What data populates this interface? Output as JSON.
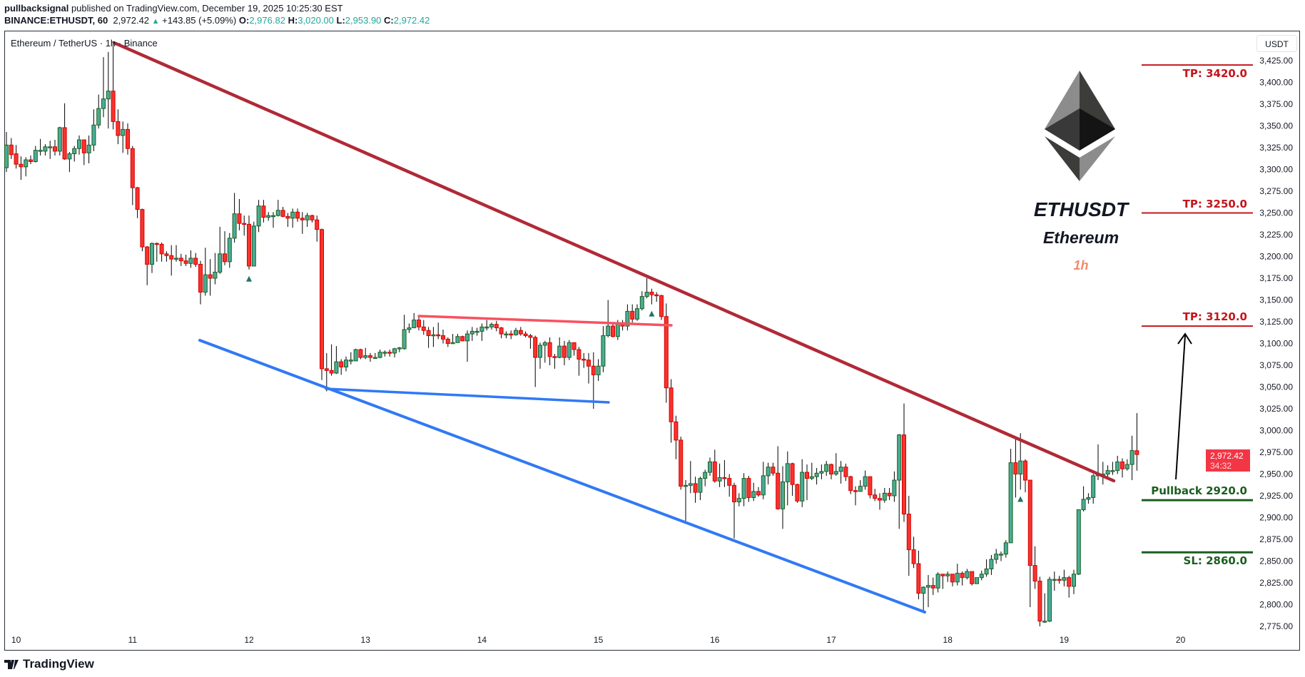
{
  "header": {
    "author": "pullbacksignal",
    "published_text": "published on TradingView.com, December 19, 2025 10:25:30 EST",
    "symbol": "BINANCE:ETHUSDT, 60",
    "last": "2,972.42",
    "change": "+143.85 (+5.09%)",
    "open_label": "O:",
    "open": "2,976.82",
    "high_label": "H:",
    "high": "3,020.00",
    "low_label": "L:",
    "low": "2,953.90",
    "close_label": "C:",
    "close": "2,972.42"
  },
  "legend": {
    "title": "Ethereum / TetherUS · 1h · Binance"
  },
  "price_axis": {
    "currency_button": "USDT",
    "last_price": "2,972.42",
    "countdown": "34:32",
    "last_price_color": "#f23645"
  },
  "overlay": {
    "ticker": "ETHUSDT",
    "name": "Ethereum",
    "timeframe": "1h",
    "logo": "ethereum-diamond-logo"
  },
  "levels": [
    {
      "label": "TP: 3420.0",
      "price": 3420,
      "color": "#c4161c",
      "label_pos": "below"
    },
    {
      "label": "TP: 3250.0",
      "price": 3250,
      "color": "#c4161c",
      "label_pos": "above"
    },
    {
      "label": "TP: 3120.0",
      "price": 3120,
      "color": "#c4161c",
      "label_pos": "above"
    },
    {
      "label": "Pullback 2920.0",
      "price": 2920,
      "color": "#1b5e20",
      "label_pos": "above"
    },
    {
      "label": "SL: 2860.0",
      "price": 2860,
      "color": "#1b5e20",
      "label_pos": "below"
    }
  ],
  "footer": {
    "brand": "TradingView"
  },
  "chart_data": {
    "type": "candlestick",
    "interval": "1h",
    "colors": {
      "up": "#4bac97",
      "up_border": "#1b5e20",
      "down": "#f7332e",
      "down_border": "#d50000",
      "resistance_trendline": "#b02a37",
      "flag_top": "#f7525f",
      "support_lines": "#3179f5"
    },
    "y_ticks": [
      "3,425.00",
      "3,400.00",
      "3,375.00",
      "3,350.00",
      "3,325.00",
      "3,300.00",
      "3,275.00",
      "3,250.00",
      "3,225.00",
      "3,200.00",
      "3,175.00",
      "3,150.00",
      "3,125.00",
      "3,100.00",
      "3,075.00",
      "3,050.00",
      "3,025.00",
      "3,000.00",
      "2,975.00",
      "2,950.00",
      "2,925.00",
      "2,900.00",
      "2,875.00",
      "2,850.00",
      "2,825.00",
      "2,800.00",
      "2,775.00"
    ],
    "ylim": [
      2760,
      3440
    ],
    "x_ticks": [
      "10",
      "11",
      "12",
      "13",
      "14",
      "15",
      "16",
      "17",
      "18",
      "19",
      "20"
    ],
    "buy_signal_markers_at_candle": [
      50,
      133,
      209
    ],
    "ohlc": [
      [
        3302,
        3343,
        3297,
        3328
      ],
      [
        3328,
        3336,
        3312,
        3317
      ],
      [
        3318,
        3328,
        3301,
        3306
      ],
      [
        3306,
        3315,
        3288,
        3303
      ],
      [
        3303,
        3314,
        3292,
        3311
      ],
      [
        3311,
        3316,
        3306,
        3309
      ],
      [
        3309,
        3327,
        3308,
        3322
      ],
      [
        3322,
        3335,
        3316,
        3322
      ],
      [
        3321,
        3329,
        3316,
        3326
      ],
      [
        3326,
        3333,
        3312,
        3326
      ],
      [
        3326,
        3334,
        3316,
        3321
      ],
      [
        3321,
        3349,
        3316,
        3348
      ],
      [
        3348,
        3376,
        3311,
        3312
      ],
      [
        3312,
        3320,
        3297,
        3318
      ],
      [
        3318,
        3327,
        3309,
        3324
      ],
      [
        3324,
        3339,
        3317,
        3334
      ],
      [
        3334,
        3334,
        3305,
        3319
      ],
      [
        3319,
        3339,
        3307,
        3328
      ],
      [
        3328,
        3369,
        3321,
        3351
      ],
      [
        3351,
        3386,
        3347,
        3370
      ],
      [
        3370,
        3429,
        3360,
        3381
      ],
      [
        3381,
        3435,
        3347,
        3390
      ],
      [
        3390,
        3446,
        3346,
        3355
      ],
      [
        3355,
        3369,
        3329,
        3339
      ],
      [
        3339,
        3355,
        3319,
        3346
      ],
      [
        3346,
        3353,
        3317,
        3324
      ],
      [
        3324,
        3327,
        3259,
        3279
      ],
      [
        3279,
        3280,
        3244,
        3254
      ],
      [
        3254,
        3255,
        3206,
        3211
      ],
      [
        3211,
        3212,
        3167,
        3191
      ],
      [
        3191,
        3216,
        3181,
        3215
      ],
      [
        3215,
        3216,
        3194,
        3214
      ],
      [
        3214,
        3216,
        3194,
        3203
      ],
      [
        3203,
        3206,
        3194,
        3201
      ],
      [
        3201,
        3213,
        3178,
        3197
      ],
      [
        3197,
        3213,
        3194,
        3198
      ],
      [
        3198,
        3203,
        3189,
        3195
      ],
      [
        3195,
        3202,
        3189,
        3192
      ],
      [
        3192,
        3207,
        3187,
        3198
      ],
      [
        3198,
        3204,
        3188,
        3191
      ],
      [
        3191,
        3195,
        3145,
        3159
      ],
      [
        3159,
        3210,
        3155,
        3179
      ],
      [
        3179,
        3197,
        3155,
        3175
      ],
      [
        3175,
        3204,
        3168,
        3182
      ],
      [
        3182,
        3234,
        3180,
        3203
      ],
      [
        3203,
        3229,
        3190,
        3194
      ],
      [
        3194,
        3227,
        3187,
        3221
      ],
      [
        3221,
        3273,
        3216,
        3249
      ],
      [
        3249,
        3266,
        3230,
        3238
      ],
      [
        3238,
        3247,
        3224,
        3237
      ],
      [
        3237,
        3247,
        3185,
        3189
      ],
      [
        3189,
        3240,
        3189,
        3235
      ],
      [
        3235,
        3265,
        3228,
        3258
      ],
      [
        3258,
        3265,
        3239,
        3245
      ],
      [
        3245,
        3251,
        3241,
        3247
      ],
      [
        3247,
        3251,
        3233,
        3247
      ],
      [
        3247,
        3265,
        3246,
        3253
      ],
      [
        3253,
        3257,
        3245,
        3246
      ],
      [
        3246,
        3250,
        3234,
        3244
      ],
      [
        3244,
        3255,
        3233,
        3251
      ],
      [
        3251,
        3255,
        3240,
        3244
      ],
      [
        3244,
        3251,
        3226,
        3242
      ],
      [
        3242,
        3250,
        3234,
        3247
      ],
      [
        3247,
        3248,
        3239,
        3242
      ],
      [
        3242,
        3247,
        3217,
        3231
      ],
      [
        3231,
        3232,
        3058,
        3071
      ],
      [
        3071,
        3089,
        3045,
        3069
      ],
      [
        3069,
        3099,
        3063,
        3066
      ],
      [
        3066,
        3097,
        3065,
        3079
      ],
      [
        3079,
        3082,
        3064,
        3073
      ],
      [
        3073,
        3085,
        3068,
        3081
      ],
      [
        3081,
        3090,
        3076,
        3081
      ],
      [
        3080,
        3094,
        3080,
        3093
      ],
      [
        3093,
        3094,
        3082,
        3084
      ],
      [
        3084,
        3095,
        3082,
        3086
      ],
      [
        3086,
        3089,
        3079,
        3084
      ],
      [
        3084,
        3089,
        3083,
        3084
      ],
      [
        3084,
        3093,
        3083,
        3090
      ],
      [
        3090,
        3092,
        3085,
        3090
      ],
      [
        3090,
        3093,
        3085,
        3089
      ],
      [
        3089,
        3095,
        3084,
        3094
      ],
      [
        3094,
        3096,
        3090,
        3095
      ],
      [
        3094,
        3133,
        3093,
        3116
      ],
      [
        3116,
        3123,
        3112,
        3118
      ],
      [
        3118,
        3135,
        3118,
        3127
      ],
      [
        3127,
        3132,
        3115,
        3119
      ],
      [
        3119,
        3127,
        3110,
        3115
      ],
      [
        3115,
        3119,
        3095,
        3109
      ],
      [
        3109,
        3119,
        3096,
        3110
      ],
      [
        3110,
        3124,
        3105,
        3109
      ],
      [
        3109,
        3116,
        3100,
        3105
      ],
      [
        3105,
        3107,
        3096,
        3100
      ],
      [
        3100,
        3111,
        3100,
        3101
      ],
      [
        3101,
        3111,
        3101,
        3108
      ],
      [
        3108,
        3109,
        3103,
        3103
      ],
      [
        3103,
        3115,
        3079,
        3111
      ],
      [
        3111,
        3119,
        3103,
        3114
      ],
      [
        3114,
        3118,
        3109,
        3114
      ],
      [
        3114,
        3123,
        3103,
        3119
      ],
      [
        3119,
        3127,
        3115,
        3119
      ],
      [
        3119,
        3124,
        3116,
        3122
      ],
      [
        3122,
        3126,
        3114,
        3118
      ],
      [
        3118,
        3119,
        3106,
        3111
      ],
      [
        3111,
        3114,
        3106,
        3111
      ],
      [
        3111,
        3115,
        3105,
        3110
      ],
      [
        3110,
        3118,
        3109,
        3115
      ],
      [
        3115,
        3119,
        3109,
        3111
      ],
      [
        3111,
        3114,
        3107,
        3109
      ],
      [
        3109,
        3111,
        3094,
        3107
      ],
      [
        3107,
        3109,
        3050,
        3084
      ],
      [
        3084,
        3101,
        3071,
        3098
      ],
      [
        3098,
        3103,
        3078,
        3101
      ],
      [
        3101,
        3107,
        3075,
        3085
      ],
      [
        3085,
        3088,
        3071,
        3084
      ],
      [
        3084,
        3107,
        3083,
        3097
      ],
      [
        3097,
        3103,
        3075,
        3084
      ],
      [
        3084,
        3104,
        3081,
        3101
      ],
      [
        3101,
        3101,
        3086,
        3093
      ],
      [
        3093,
        3096,
        3063,
        3082
      ],
      [
        3082,
        3089,
        3072,
        3081
      ],
      [
        3081,
        3089,
        3054,
        3074
      ],
      [
        3074,
        3090,
        3025,
        3064
      ],
      [
        3064,
        3082,
        3057,
        3074
      ],
      [
        3074,
        3120,
        3067,
        3109
      ],
      [
        3109,
        3150,
        3107,
        3120
      ],
      [
        3120,
        3124,
        3107,
        3108
      ],
      [
        3108,
        3127,
        3104,
        3124
      ],
      [
        3124,
        3127,
        3115,
        3120
      ],
      [
        3120,
        3145,
        3115,
        3137
      ],
      [
        3137,
        3145,
        3124,
        3128
      ],
      [
        3128,
        3145,
        3126,
        3140
      ],
      [
        3140,
        3160,
        3138,
        3154
      ],
      [
        3154,
        3175,
        3152,
        3159
      ],
      [
        3159,
        3163,
        3145,
        3156
      ],
      [
        3156,
        3159,
        3148,
        3155
      ],
      [
        3155,
        3156,
        3127,
        3131
      ],
      [
        3131,
        3146,
        3032,
        3049
      ],
      [
        3049,
        3059,
        2986,
        3010
      ],
      [
        3010,
        3017,
        2967,
        2989
      ],
      [
        2989,
        2993,
        2932,
        2936
      ],
      [
        2936,
        2943,
        2896,
        2937
      ],
      [
        2937,
        2965,
        2928,
        2939
      ],
      [
        2939,
        2947,
        2917,
        2929
      ],
      [
        2929,
        2947,
        2920,
        2945
      ],
      [
        2945,
        2955,
        2936,
        2952
      ],
      [
        2952,
        2969,
        2948,
        2964
      ],
      [
        2964,
        2978,
        2940,
        2942
      ],
      [
        2942,
        2962,
        2935,
        2946
      ],
      [
        2946,
        2966,
        2935,
        2945
      ],
      [
        2945,
        2950,
        2924,
        2937
      ],
      [
        2937,
        2940,
        2876,
        2918
      ],
      [
        2918,
        2928,
        2913,
        2922
      ],
      [
        2922,
        2951,
        2913,
        2945
      ],
      [
        2945,
        2948,
        2918,
        2923
      ],
      [
        2923,
        2940,
        2919,
        2930
      ],
      [
        2930,
        2935,
        2924,
        2926
      ],
      [
        2926,
        2964,
        2921,
        2948
      ],
      [
        2948,
        2963,
        2938,
        2958
      ],
      [
        2958,
        2963,
        2948,
        2951
      ],
      [
        2951,
        2982,
        2909,
        2910
      ],
      [
        2910,
        2959,
        2887,
        2941
      ],
      [
        2941,
        2976,
        2914,
        2962
      ],
      [
        2962,
        2963,
        2925,
        2938
      ],
      [
        2938,
        2939,
        2917,
        2919
      ],
      [
        2919,
        2967,
        2912,
        2952
      ],
      [
        2952,
        2961,
        2920,
        2945
      ],
      [
        2945,
        2963,
        2943,
        2947
      ],
      [
        2947,
        2957,
        2938,
        2951
      ],
      [
        2951,
        2961,
        2944,
        2953
      ],
      [
        2953,
        2965,
        2948,
        2961
      ],
      [
        2961,
        2962,
        2944,
        2950
      ],
      [
        2950,
        2974,
        2948,
        2953
      ],
      [
        2953,
        2965,
        2939,
        2958
      ],
      [
        2958,
        2962,
        2942,
        2947
      ],
      [
        2947,
        2948,
        2927,
        2931
      ],
      [
        2931,
        2936,
        2914,
        2930
      ],
      [
        2930,
        2943,
        2930,
        2936
      ],
      [
        2936,
        2954,
        2932,
        2947
      ],
      [
        2947,
        2947,
        2922,
        2926
      ],
      [
        2926,
        2933,
        2919,
        2922
      ],
      [
        2922,
        2928,
        2909,
        2920
      ],
      [
        2920,
        2934,
        2917,
        2928
      ],
      [
        2928,
        2934,
        2920,
        2925
      ],
      [
        2925,
        2953,
        2918,
        2943
      ],
      [
        2943,
        2996,
        2887,
        2995
      ],
      [
        2995,
        3031,
        2895,
        2904
      ],
      [
        2904,
        2925,
        2833,
        2863
      ],
      [
        2863,
        2878,
        2842,
        2847
      ],
      [
        2847,
        2862,
        2806,
        2813
      ],
      [
        2813,
        2821,
        2793,
        2820
      ],
      [
        2820,
        2834,
        2797,
        2822
      ],
      [
        2822,
        2831,
        2811,
        2819
      ],
      [
        2819,
        2837,
        2814,
        2835
      ],
      [
        2835,
        2835,
        2818,
        2833
      ],
      [
        2833,
        2838,
        2826,
        2835
      ],
      [
        2835,
        2835,
        2821,
        2826
      ],
      [
        2826,
        2847,
        2822,
        2836
      ],
      [
        2836,
        2838,
        2822,
        2831
      ],
      [
        2831,
        2841,
        2829,
        2838
      ],
      [
        2838,
        2838,
        2822,
        2824
      ],
      [
        2824,
        2831,
        2824,
        2831
      ],
      [
        2831,
        2839,
        2828,
        2835
      ],
      [
        2835,
        2852,
        2832,
        2841
      ],
      [
        2841,
        2857,
        2834,
        2852
      ],
      [
        2852,
        2864,
        2847,
        2858
      ],
      [
        2858,
        2861,
        2850,
        2858
      ],
      [
        2858,
        2874,
        2854,
        2871
      ],
      [
        2871,
        2979,
        2871,
        2963
      ],
      [
        2963,
        2990,
        2923,
        2950
      ],
      [
        2950,
        2997,
        2932,
        2965
      ],
      [
        2965,
        2967,
        2929,
        2943
      ],
      [
        2943,
        2943,
        2797,
        2845
      ],
      [
        2845,
        2867,
        2818,
        2827
      ],
      [
        2827,
        2832,
        2775,
        2781
      ],
      [
        2781,
        2813,
        2779,
        2781
      ],
      [
        2781,
        2832,
        2780,
        2829
      ],
      [
        2829,
        2838,
        2816,
        2829
      ],
      [
        2829,
        2833,
        2824,
        2828
      ],
      [
        2828,
        2840,
        2821,
        2831
      ],
      [
        2831,
        2833,
        2808,
        2821
      ],
      [
        2821,
        2840,
        2812,
        2835
      ],
      [
        2835,
        2909,
        2834,
        2909
      ],
      [
        2909,
        2936,
        2907,
        2921
      ],
      [
        2921,
        2928,
        2916,
        2923
      ],
      [
        2923,
        2950,
        2916,
        2948
      ],
      [
        2948,
        2984,
        2943,
        2950
      ],
      [
        2950,
        2964,
        2938,
        2950
      ],
      [
        2950,
        2960,
        2947,
        2954
      ],
      [
        2954,
        2964,
        2949,
        2954
      ],
      [
        2954,
        2971,
        2950,
        2964
      ],
      [
        2964,
        2968,
        2946,
        2956
      ],
      [
        2956,
        2967,
        2954,
        2961
      ],
      [
        2961,
        2994,
        2943,
        2977
      ],
      [
        2976.82,
        3020,
        2953.9,
        2972.42
      ]
    ]
  }
}
